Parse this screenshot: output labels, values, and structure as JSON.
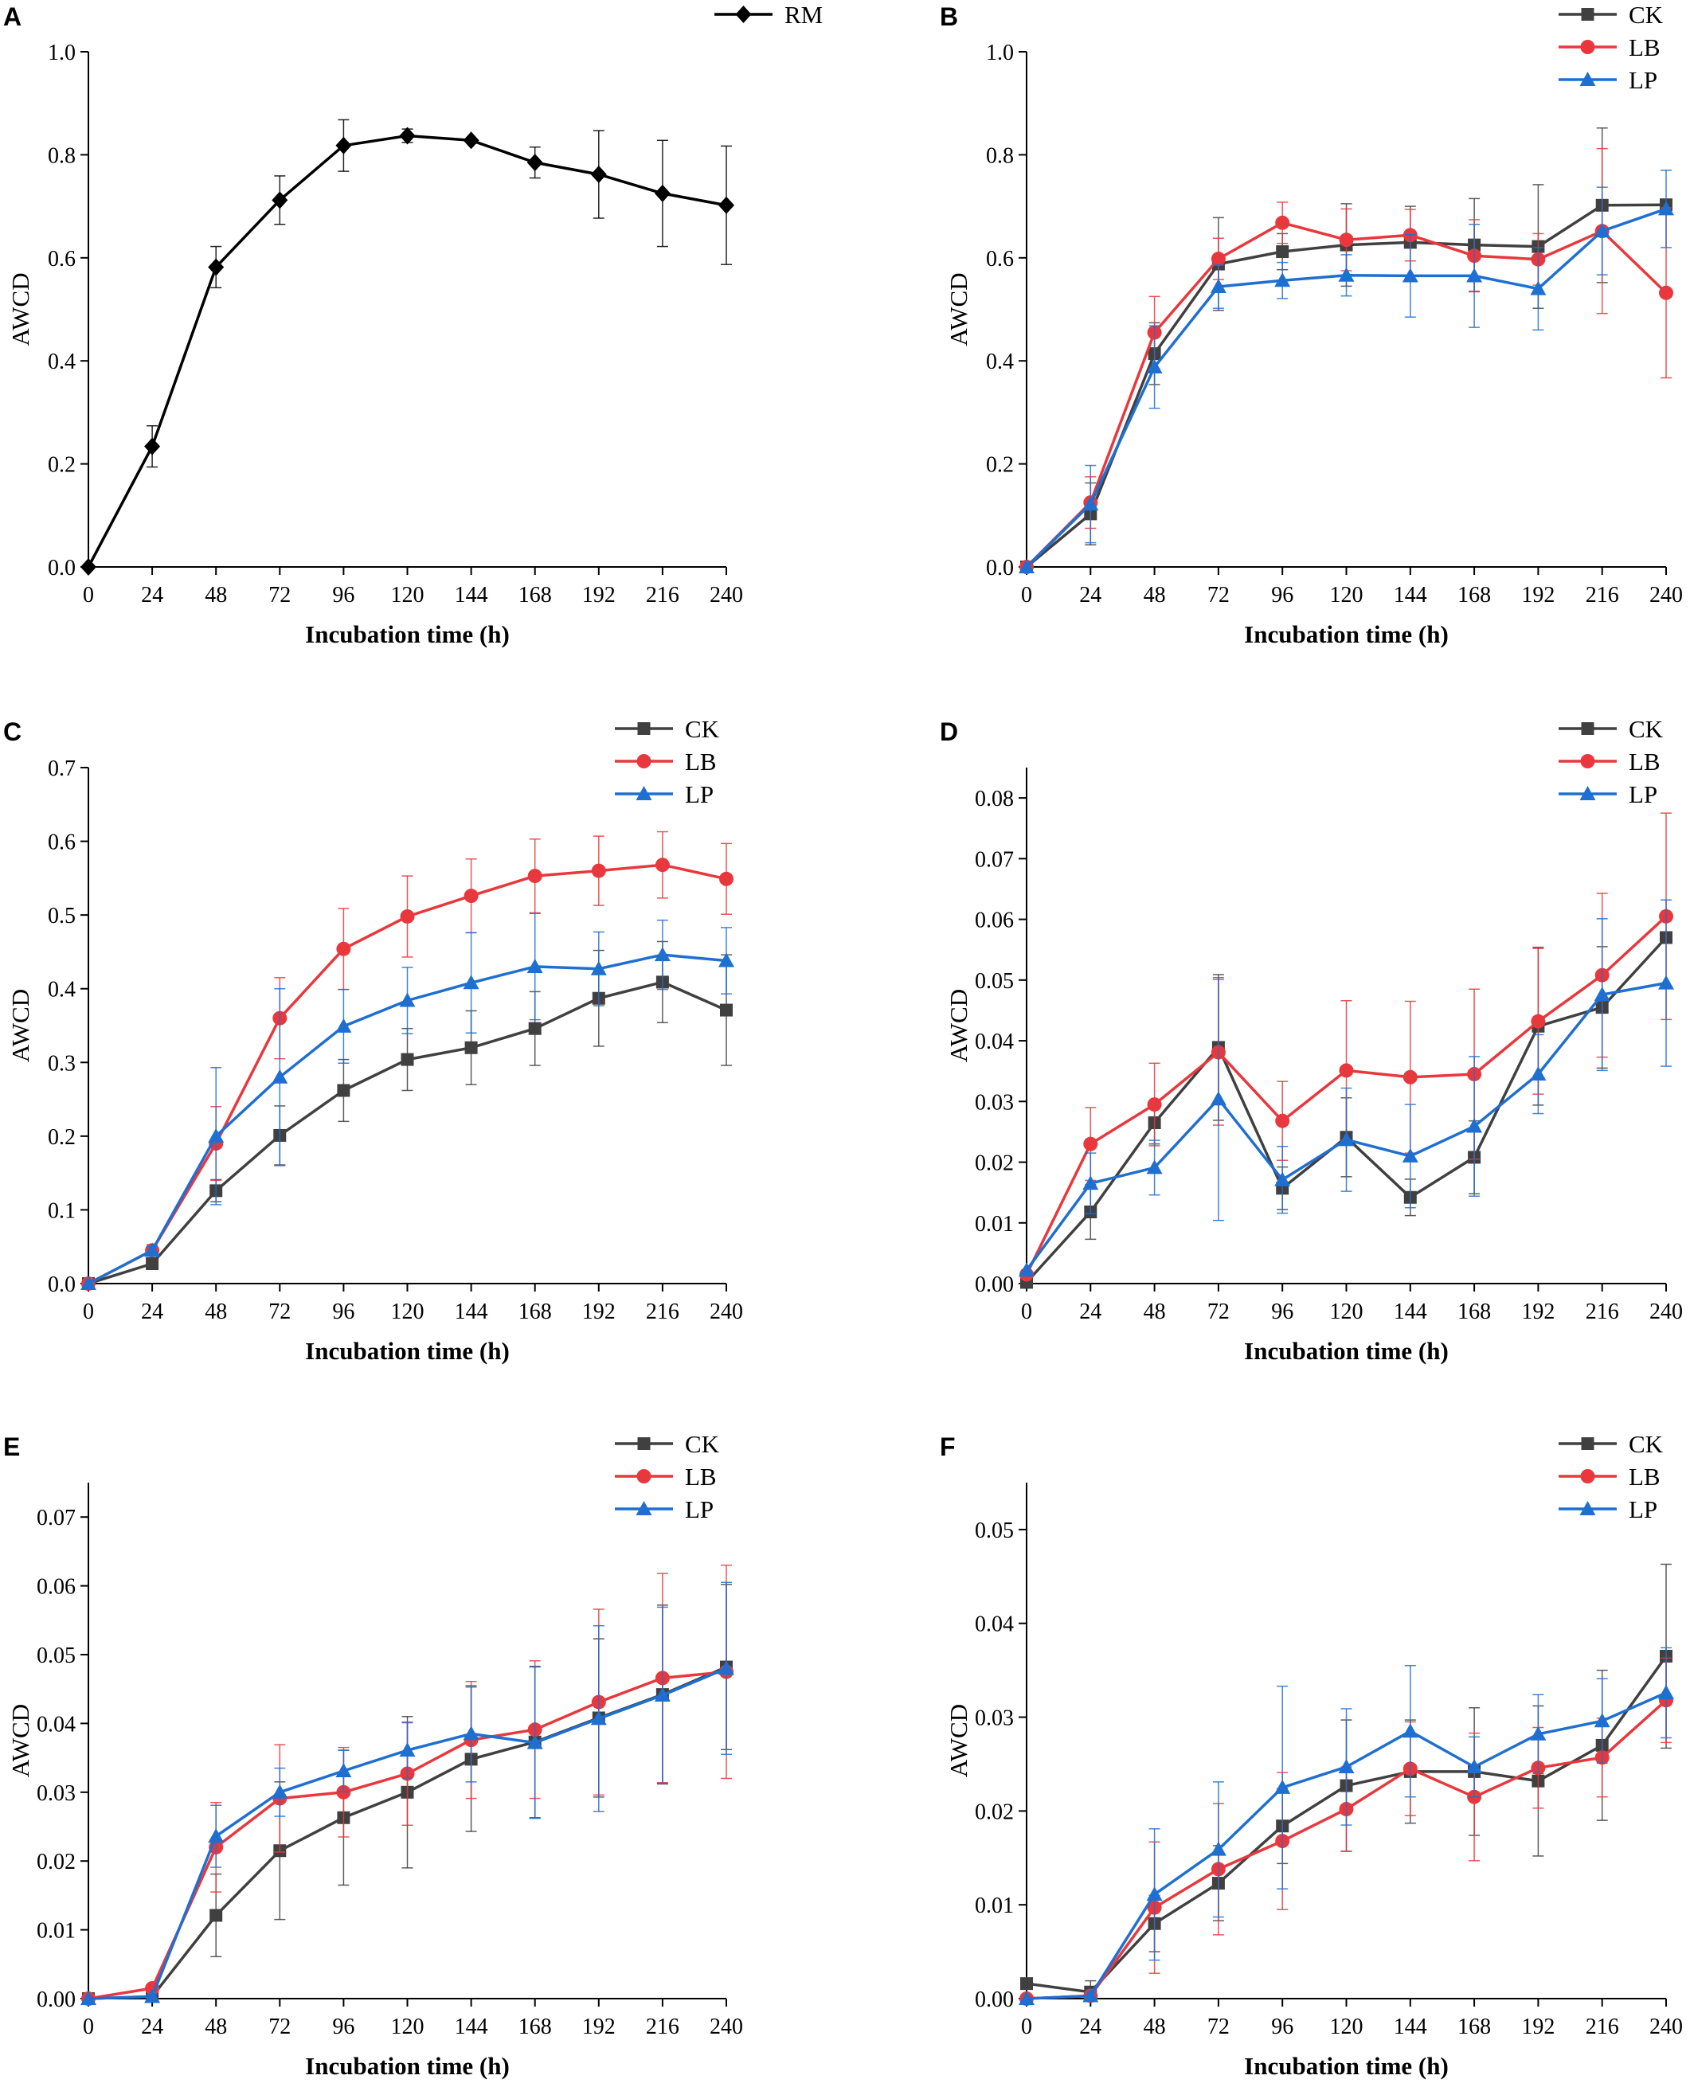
{
  "colors": {
    "RM": "#000000",
    "CK": "#404040",
    "LB": "#e8383d",
    "LP": "#1f6fd1"
  },
  "chart_data": [
    {
      "panel": "A",
      "type": "line",
      "xlabel": "Incubation time (h)",
      "ylabel": "AWCD",
      "x": [
        0,
        24,
        48,
        72,
        96,
        120,
        144,
        168,
        192,
        216,
        240
      ],
      "xticks": [
        "0",
        "24",
        "48",
        "72",
        "96",
        "120",
        "144",
        "168",
        "192",
        "216",
        "240"
      ],
      "ylim": [
        0,
        1.0
      ],
      "yticks": [
        "0.0",
        "0.2",
        "0.4",
        "0.6",
        "0.8",
        "1.0"
      ],
      "series": [
        {
          "name": "RM",
          "marker": "diamond",
          "color": "#000000",
          "values": [
            0.0,
            0.234,
            0.582,
            0.712,
            0.818,
            0.837,
            0.828,
            0.785,
            0.762,
            0.725,
            0.702
          ],
          "errors": [
            0.0,
            0.04,
            0.04,
            0.047,
            0.05,
            0.013,
            0.0,
            0.03,
            0.085,
            0.103,
            0.115
          ]
        }
      ]
    },
    {
      "panel": "B",
      "type": "line",
      "xlabel": "Incubation time (h)",
      "ylabel": "AWCD",
      "x": [
        0,
        24,
        48,
        72,
        96,
        120,
        144,
        168,
        192,
        216,
        240
      ],
      "xticks": [
        "0",
        "24",
        "48",
        "72",
        "96",
        "120",
        "144",
        "168",
        "192",
        "216",
        "240"
      ],
      "ylim": [
        0,
        1.0
      ],
      "yticks": [
        "0.0",
        "0.2",
        "0.4",
        "0.6",
        "0.8",
        "1.0"
      ],
      "series": [
        {
          "name": "CK",
          "marker": "square",
          "color": "#404040",
          "values": [
            0.0,
            0.103,
            0.414,
            0.588,
            0.612,
            0.625,
            0.63,
            0.625,
            0.622,
            0.702,
            0.703
          ],
          "errors": [
            0.0,
            0.06,
            0.06,
            0.09,
            0.035,
            0.08,
            0.07,
            0.09,
            0.12,
            0.15,
            0.0
          ]
        },
        {
          "name": "LB",
          "marker": "circle",
          "color": "#e8383d",
          "values": [
            0.0,
            0.125,
            0.455,
            0.598,
            0.668,
            0.635,
            0.644,
            0.604,
            0.597,
            0.652,
            0.532
          ],
          "errors": [
            0.0,
            0.05,
            0.07,
            0.04,
            0.04,
            0.06,
            0.05,
            0.07,
            0.05,
            0.16,
            0.165
          ]
        },
        {
          "name": "LP",
          "marker": "triangle",
          "color": "#1f6fd1",
          "values": [
            0.0,
            0.122,
            0.388,
            0.544,
            0.556,
            0.566,
            0.565,
            0.565,
            0.54,
            0.652,
            0.695
          ],
          "errors": [
            0.0,
            0.075,
            0.08,
            0.042,
            0.035,
            0.04,
            0.08,
            0.1,
            0.08,
            0.085,
            0.075
          ]
        }
      ]
    },
    {
      "panel": "C",
      "type": "line",
      "xlabel": "Incubation time (h)",
      "ylabel": "AWCD",
      "x": [
        0,
        24,
        48,
        72,
        96,
        120,
        144,
        168,
        192,
        216,
        240
      ],
      "xticks": [
        "0",
        "24",
        "48",
        "72",
        "96",
        "120",
        "144",
        "168",
        "192",
        "216",
        "240"
      ],
      "ylim": [
        0,
        0.7
      ],
      "yticks": [
        "0.0",
        "0.1",
        "0.2",
        "0.3",
        "0.4",
        "0.5",
        "0.6",
        "0.7"
      ],
      "series": [
        {
          "name": "CK",
          "marker": "square",
          "color": "#404040",
          "values": [
            0.0,
            0.027,
            0.126,
            0.201,
            0.262,
            0.304,
            0.32,
            0.346,
            0.387,
            0.409,
            0.371
          ],
          "errors": [
            0.0,
            0.005,
            0.015,
            0.04,
            0.042,
            0.042,
            0.05,
            0.05,
            0.065,
            0.055,
            0.075
          ]
        },
        {
          "name": "LB",
          "marker": "circle",
          "color": "#e8383d",
          "values": [
            0.0,
            0.045,
            0.19,
            0.36,
            0.454,
            0.498,
            0.526,
            0.553,
            0.56,
            0.568,
            0.549
          ],
          "errors": [
            0.0,
            0.008,
            0.05,
            0.055,
            0.055,
            0.055,
            0.05,
            0.05,
            0.047,
            0.045,
            0.048
          ]
        },
        {
          "name": "LP",
          "marker": "triangle",
          "color": "#1f6fd1",
          "values": [
            0.0,
            0.045,
            0.2,
            0.28,
            0.349,
            0.384,
            0.408,
            0.43,
            0.427,
            0.446,
            0.438
          ],
          "errors": [
            0.0,
            0.005,
            0.093,
            0.12,
            0.05,
            0.045,
            0.068,
            0.072,
            0.05,
            0.047,
            0.045
          ]
        }
      ]
    },
    {
      "panel": "D",
      "type": "line",
      "xlabel": "Incubation time (h)",
      "ylabel": "AWCD",
      "x": [
        0,
        24,
        48,
        72,
        96,
        120,
        144,
        168,
        192,
        216,
        240
      ],
      "xticks": [
        "0",
        "24",
        "48",
        "72",
        "96",
        "120",
        "144",
        "168",
        "192",
        "216",
        "240"
      ],
      "ylim": [
        0,
        0.085
      ],
      "yticks": [
        "0.00",
        "0.01",
        "0.02",
        "0.03",
        "0.04",
        "0.05",
        "0.06",
        "0.07",
        "0.08"
      ],
      "ytickvalues": [
        0,
        0.01,
        0.02,
        0.03,
        0.04,
        0.05,
        0.06,
        0.07,
        0.08
      ],
      "series": [
        {
          "name": "CK",
          "marker": "square",
          "color": "#404040",
          "values": [
            0.0002,
            0.0118,
            0.0265,
            0.0389,
            0.0157,
            0.0241,
            0.0142,
            0.0208,
            0.0424,
            0.0455,
            0.057
          ],
          "errors": [
            0.0,
            0.0045,
            0.0035,
            0.012,
            0.0035,
            0.0065,
            0.003,
            0.006,
            0.013,
            0.01,
            0.0
          ]
        },
        {
          "name": "LB",
          "marker": "circle",
          "color": "#e8383d",
          "values": [
            0.0015,
            0.023,
            0.0295,
            0.0381,
            0.0268,
            0.0351,
            0.034,
            0.0345,
            0.0432,
            0.0508,
            0.0605
          ],
          "errors": [
            0.0,
            0.006,
            0.0068,
            0.012,
            0.0065,
            0.0115,
            0.0125,
            0.014,
            0.012,
            0.0135,
            0.017
          ]
        },
        {
          "name": "LP",
          "marker": "triangle",
          "color": "#1f6fd1",
          "values": [
            0.0022,
            0.0165,
            0.0191,
            0.0304,
            0.0171,
            0.0237,
            0.021,
            0.0259,
            0.0345,
            0.0476,
            0.0495
          ],
          "errors": [
            0.0,
            0.005,
            0.0045,
            0.02,
            0.0055,
            0.0085,
            0.0085,
            0.0115,
            0.0065,
            0.0125,
            0.0137
          ]
        }
      ]
    },
    {
      "panel": "E",
      "type": "line",
      "xlabel": "Incubation time (h)",
      "ylabel": "AWCD",
      "x": [
        0,
        24,
        48,
        72,
        96,
        120,
        144,
        168,
        192,
        216,
        240
      ],
      "xticks": [
        "0",
        "24",
        "48",
        "72",
        "96",
        "120",
        "144",
        "168",
        "192",
        "216",
        "240"
      ],
      "ylim": [
        0,
        0.075
      ],
      "yticks": [
        "0.00",
        "0.01",
        "0.02",
        "0.03",
        "0.04",
        "0.05",
        "0.06",
        "0.07"
      ],
      "ytickvalues": [
        0,
        0.01,
        0.02,
        0.03,
        0.04,
        0.05,
        0.06,
        0.07
      ],
      "series": [
        {
          "name": "CK",
          "marker": "square",
          "color": "#404040",
          "values": [
            0.0,
            0.0003,
            0.0121,
            0.0215,
            0.0263,
            0.03,
            0.0348,
            0.0373,
            0.0408,
            0.0442,
            0.0482
          ],
          "errors": [
            0.0,
            0.0005,
            0.006,
            0.01,
            0.0098,
            0.011,
            0.0105,
            0.011,
            0.0115,
            0.013,
            0.012
          ]
        },
        {
          "name": "LB",
          "marker": "circle",
          "color": "#e8383d",
          "values": [
            0.0,
            0.0015,
            0.022,
            0.0291,
            0.03,
            0.0327,
            0.0376,
            0.0391,
            0.0431,
            0.0466,
            0.0475
          ],
          "errors": [
            0.0,
            0.0005,
            0.0065,
            0.0078,
            0.0065,
            0.0075,
            0.0085,
            0.01,
            0.0135,
            0.0152,
            0.0155
          ]
        },
        {
          "name": "LP",
          "marker": "triangle",
          "color": "#1f6fd1",
          "values": [
            0.0,
            0.0003,
            0.0236,
            0.03,
            0.0331,
            0.0361,
            0.0385,
            0.0372,
            0.0407,
            0.0441,
            0.048
          ],
          "errors": [
            0.0,
            0.0003,
            0.0045,
            0.0035,
            0.003,
            0.004,
            0.007,
            0.011,
            0.0135,
            0.0128,
            0.0125
          ]
        }
      ]
    },
    {
      "panel": "F",
      "type": "line",
      "xlabel": "Incubation time (h)",
      "ylabel": "AWCD",
      "x": [
        0,
        24,
        48,
        72,
        96,
        120,
        144,
        168,
        192,
        216,
        240
      ],
      "xticks": [
        "0",
        "24",
        "48",
        "72",
        "96",
        "120",
        "144",
        "168",
        "192",
        "216",
        "240"
      ],
      "ylim": [
        0,
        0.055
      ],
      "yticks": [
        "0.00",
        "0.01",
        "0.02",
        "0.03",
        "0.04",
        "0.05"
      ],
      "ytickvalues": [
        0,
        0.01,
        0.02,
        0.03,
        0.04,
        0.05
      ],
      "series": [
        {
          "name": "CK",
          "marker": "square",
          "color": "#404040",
          "values": [
            0.0016,
            0.0007,
            0.008,
            0.0123,
            0.0184,
            0.0227,
            0.0242,
            0.0242,
            0.0232,
            0.027,
            0.0365
          ],
          "errors": [
            0.0,
            0.0012,
            0.003,
            0.004,
            0.004,
            0.007,
            0.0055,
            0.0068,
            0.008,
            0.008,
            0.0098
          ]
        },
        {
          "name": "LB",
          "marker": "circle",
          "color": "#e8383d",
          "values": [
            0.0,
            0.0003,
            0.0097,
            0.0138,
            0.0168,
            0.0202,
            0.0245,
            0.0215,
            0.0246,
            0.0257,
            0.0318
          ],
          "errors": [
            0.0,
            0.0003,
            0.007,
            0.007,
            0.0073,
            0.0045,
            0.005,
            0.0068,
            0.0043,
            0.0042,
            0.0045
          ]
        },
        {
          "name": "LP",
          "marker": "triangle",
          "color": "#1f6fd1",
          "values": [
            0.0,
            0.0003,
            0.0111,
            0.0159,
            0.0225,
            0.0247,
            0.0285,
            0.0247,
            0.0282,
            0.0296,
            0.0326
          ],
          "errors": [
            0.0,
            0.0003,
            0.007,
            0.0072,
            0.0108,
            0.0062,
            0.007,
            0.0032,
            0.0042,
            0.0045,
            0.0048
          ]
        }
      ]
    }
  ]
}
